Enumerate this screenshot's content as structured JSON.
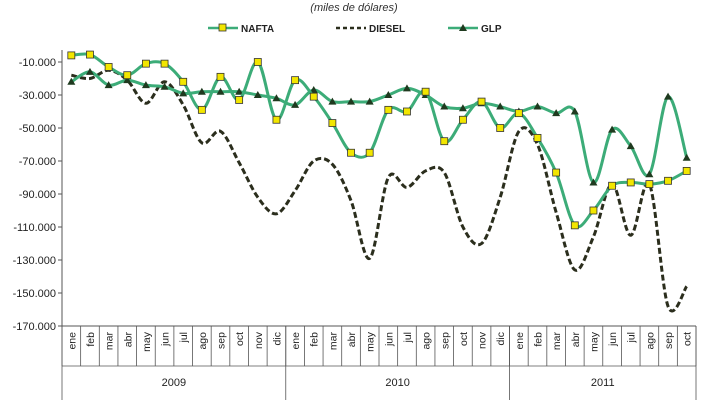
{
  "chart_data": {
    "type": "line",
    "subtitle": "(miles de dólares)",
    "ylim": [
      -170000,
      -10000
    ],
    "yticks": [
      "-10.000",
      "-30.000",
      "-50.000",
      "-70.000",
      "-90.000",
      "-110.000",
      "-130.000",
      "-150.000",
      "-170.000"
    ],
    "ytick_values": [
      -10000,
      -30000,
      -50000,
      -70000,
      -90000,
      -110000,
      -130000,
      -150000,
      -170000
    ],
    "categories": [
      "ene",
      "feb",
      "mar",
      "abr",
      "may",
      "jun",
      "jul",
      "ago",
      "sep",
      "oct",
      "nov",
      "dic",
      "ene",
      "feb",
      "mar",
      "abr",
      "may",
      "jun",
      "jul",
      "ago",
      "sep",
      "oct",
      "nov",
      "dic",
      "ene",
      "feb",
      "mar",
      "abr",
      "may",
      "jun",
      "jul",
      "ago",
      "sep",
      "oct"
    ],
    "years": [
      {
        "label": "2009",
        "start": 0,
        "count": 12
      },
      {
        "label": "2010",
        "start": 12,
        "count": 12
      },
      {
        "label": "2011",
        "start": 24,
        "count": 10
      }
    ],
    "grid": false,
    "legend_position": "top",
    "series": [
      {
        "name": "NAFTA",
        "color": "#3cac78",
        "line": "solid",
        "marker": "square",
        "values": [
          -6000,
          -5500,
          -13000,
          -18000,
          -11000,
          -11000,
          -22000,
          -39000,
          -19000,
          -33000,
          -10000,
          -45000,
          -21000,
          -31000,
          -47000,
          -65000,
          -65000,
          -39000,
          -40000,
          -28000,
          -58000,
          -45000,
          -34000,
          -50000,
          -41000,
          -56000,
          -77000,
          -109000,
          -100000,
          -85000,
          -83000,
          -84000,
          -82000,
          -76000
        ]
      },
      {
        "name": "DIESEL",
        "color": "#2b2e1d",
        "line": "dashed",
        "marker": "none",
        "values": [
          -18000,
          -20000,
          -15000,
          -21000,
          -35000,
          -22000,
          -36000,
          -59000,
          -52000,
          -71000,
          -92000,
          -102000,
          -88000,
          -70000,
          -72000,
          -94000,
          -129000,
          -80000,
          -86000,
          -76000,
          -77000,
          -110000,
          -120000,
          -92000,
          -52000,
          -60000,
          -101000,
          -136000,
          -116000,
          -84000,
          -115000,
          -84000,
          -158000,
          -146000
        ]
      },
      {
        "name": "GLP",
        "color": "#3cac78",
        "line": "solid",
        "marker": "triangle",
        "values": [
          -22000,
          -16000,
          -24000,
          -21000,
          -24000,
          -25000,
          -29000,
          -28000,
          -28000,
          -28000,
          -30000,
          -32000,
          -36000,
          -27000,
          -34000,
          -34000,
          -34000,
          -30000,
          -26000,
          -30000,
          -37000,
          -38000,
          -35000,
          -37000,
          -40000,
          -37000,
          -41000,
          -40000,
          -83000,
          -51000,
          -61000,
          -78000,
          -31000,
          -68000
        ]
      }
    ]
  }
}
